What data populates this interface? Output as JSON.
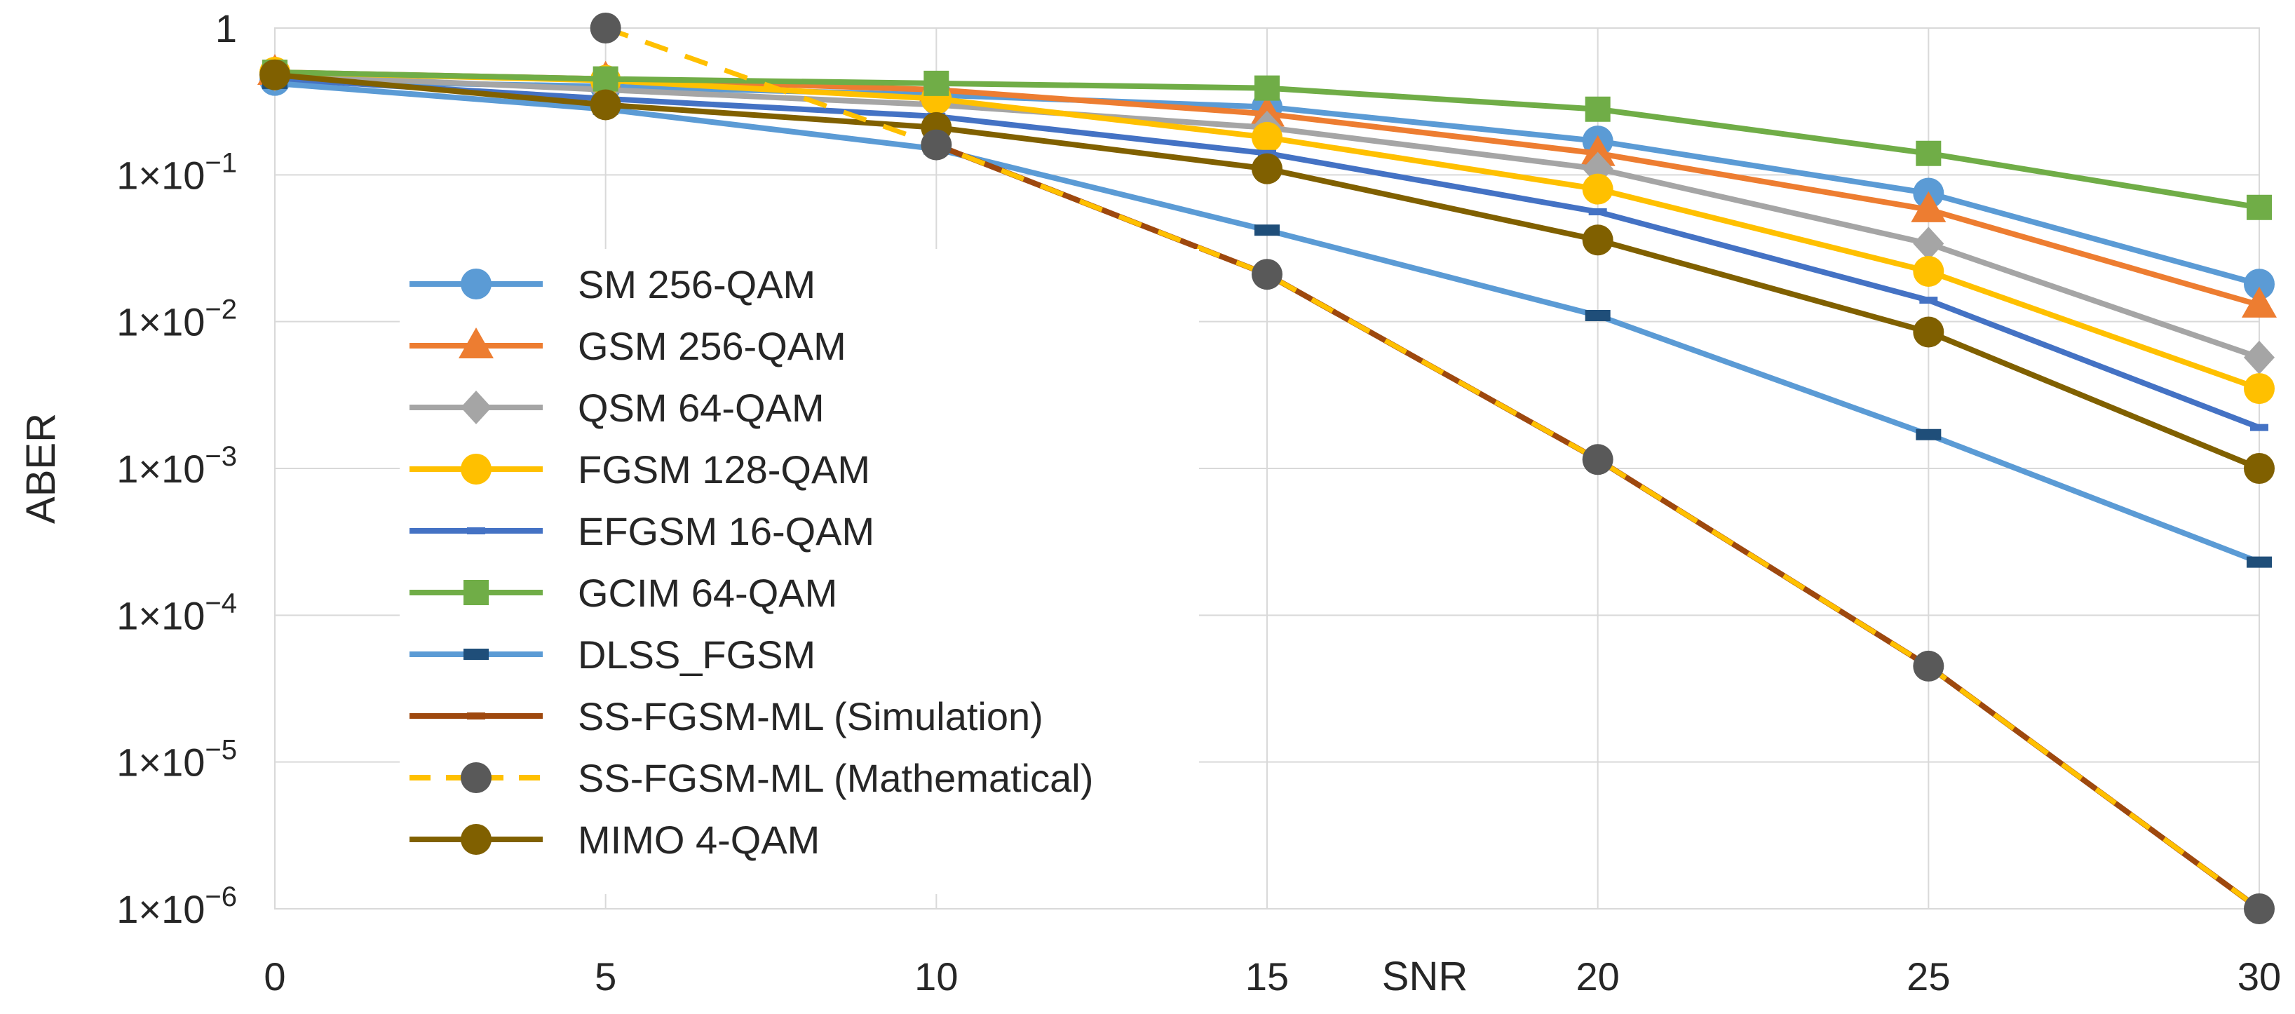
{
  "chart_data": {
    "type": "line",
    "title": "",
    "xlabel": "SNR",
    "ylabel": "ABER",
    "yscale": "log",
    "x": [
      0,
      5,
      10,
      15,
      20,
      25,
      30
    ],
    "xlim": [
      0,
      30
    ],
    "ylim": [
      1e-06,
      1
    ],
    "xticks": [
      "0",
      "5",
      "10",
      "15",
      "20",
      "25",
      "30"
    ],
    "yticks": [
      {
        "value": 1,
        "base": "1",
        "exp": ""
      },
      {
        "value": 0.1,
        "base": "1×10",
        "exp": "−1"
      },
      {
        "value": 0.01,
        "base": "1×10",
        "exp": "−2"
      },
      {
        "value": 0.001,
        "base": "1×10",
        "exp": "−3"
      },
      {
        "value": 0.0001,
        "base": "1×10",
        "exp": "−4"
      },
      {
        "value": 1e-05,
        "base": "1×10",
        "exp": "−5"
      },
      {
        "value": 1e-06,
        "base": "1×10",
        "exp": "−6"
      }
    ],
    "series": [
      {
        "name": "SM 256-QAM",
        "color": "#5b9bd5",
        "marker": "circle",
        "dash": false,
        "x": [
          0,
          5,
          10,
          15,
          20,
          25,
          30
        ],
        "values": [
          0.44,
          0.4,
          0.35,
          0.29,
          0.17,
          0.075,
          0.018
        ]
      },
      {
        "name": "GSM 256-QAM",
        "color": "#ed7d31",
        "marker": "triangle",
        "dash": false,
        "x": [
          0,
          5,
          10,
          15,
          20,
          25,
          30
        ],
        "values": [
          0.5,
          0.45,
          0.38,
          0.26,
          0.14,
          0.058,
          0.013
        ]
      },
      {
        "name": "QSM 64-QAM",
        "color": "#a5a5a5",
        "marker": "diamond",
        "dash": false,
        "x": [
          0,
          5,
          10,
          15,
          20,
          25,
          30
        ],
        "values": [
          0.48,
          0.38,
          0.3,
          0.21,
          0.11,
          0.034,
          0.0057
        ]
      },
      {
        "name": "FGSM  128-QAM",
        "color": "#ffc000",
        "marker": "circle",
        "dash": false,
        "x": [
          0,
          5,
          10,
          15,
          20,
          25,
          30
        ],
        "values": [
          0.5,
          0.44,
          0.33,
          0.18,
          0.08,
          0.022,
          0.0035
        ]
      },
      {
        "name": "EFGSM 16-QAM",
        "color": "#4472c4",
        "marker": "dash",
        "dash": false,
        "x": [
          0,
          5,
          10,
          15,
          20,
          25,
          30
        ],
        "values": [
          0.45,
          0.33,
          0.25,
          0.14,
          0.056,
          0.014,
          0.0019
        ]
      },
      {
        "name": "GCIM  64-QAM",
        "color": "#70ad47",
        "marker": "square",
        "dash": false,
        "x": [
          0,
          5,
          10,
          15,
          20,
          25,
          30
        ],
        "values": [
          0.5,
          0.45,
          0.42,
          0.39,
          0.28,
          0.14,
          0.06
        ]
      },
      {
        "name": "DLSS_FGSM",
        "color": "#5b9bd5",
        "marker": "rect",
        "dash": false,
        "x": [
          0,
          5,
          10,
          15,
          20,
          25,
          30
        ],
        "values": [
          0.42,
          0.28,
          0.15,
          0.042,
          0.011,
          0.0017,
          0.00023
        ]
      },
      {
        "name": "SS-FGSM-ML (Simulation)",
        "color": "#9e480e",
        "marker": "dash",
        "dash": false,
        "x": [
          10,
          15,
          20,
          25,
          30
        ],
        "values": [
          0.16,
          0.021,
          0.00115,
          4.5e-05,
          1e-06
        ]
      },
      {
        "name": "SS-FGSM-ML (Mathematical)",
        "color": "#ffc000",
        "marker": "gray-circle",
        "dash": true,
        "x": [
          5,
          10,
          15,
          20,
          25,
          30
        ],
        "values": [
          1,
          0.16,
          0.021,
          0.00115,
          4.5e-05,
          1e-06
        ]
      },
      {
        "name": "MIMO 4-QAM",
        "color": "#806000",
        "marker": "circle",
        "dash": false,
        "x": [
          0,
          5,
          10,
          15,
          20,
          25,
          30
        ],
        "values": [
          0.48,
          0.3,
          0.21,
          0.11,
          0.036,
          0.0085,
          0.001
        ]
      }
    ],
    "legend_position": "left-center inside plot"
  }
}
